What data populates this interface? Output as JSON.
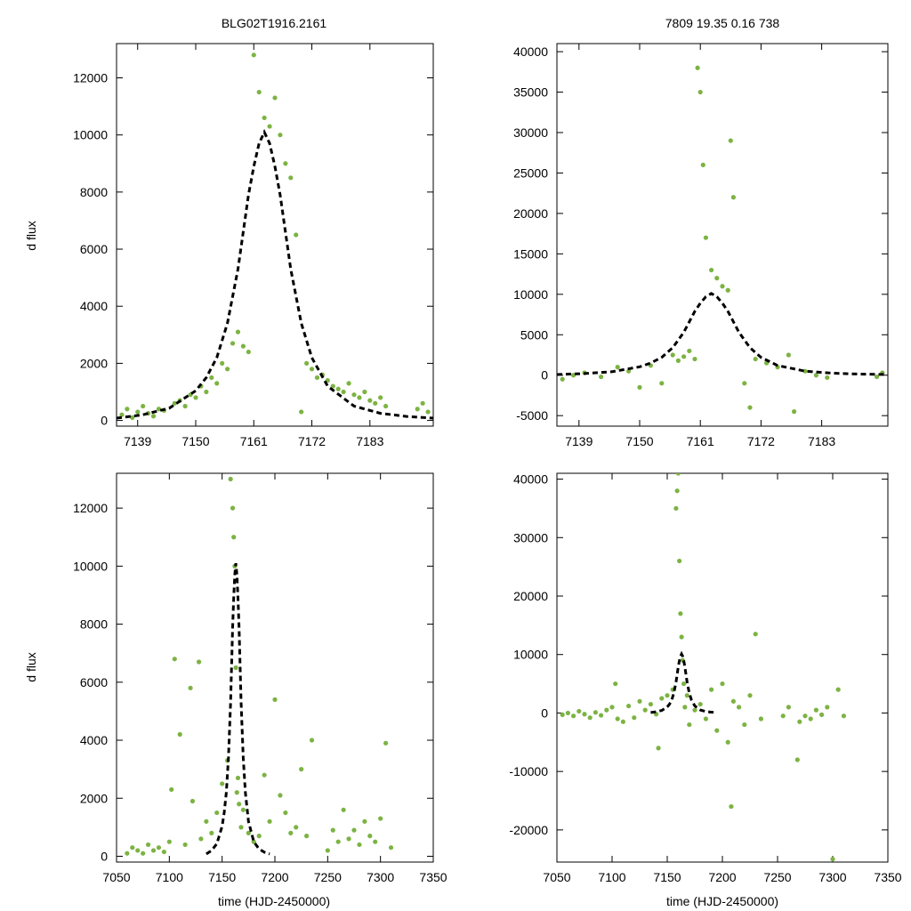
{
  "figure_title_left": "BLG02T1916.2161",
  "figure_title_right": "7809   19.35   0.16   738",
  "ylabel": "d flux",
  "xlabel": "time (HJD-2450000)",
  "colors": {
    "points": "#7cb342",
    "model": "#000000"
  },
  "model": {
    "type": "single-lens microlensing fit",
    "t0": 7163,
    "peak": 10100,
    "tE": 8.5
  },
  "chart_data": [
    {
      "type": "scatter",
      "panel": "top-left",
      "title": "BLG02T1916.2161",
      "xlabel": "",
      "ylabel": "d flux",
      "xlim": [
        7135,
        7195
      ],
      "ylim": [
        -200,
        13200
      ],
      "xticks": [
        7139,
        7150,
        7161,
        7172,
        7183
      ],
      "yticks": [
        0,
        2000,
        4000,
        6000,
        8000,
        10000,
        12000
      ],
      "series": [
        {
          "name": "photometry",
          "style": "points",
          "x": [
            7136,
            7137,
            7138,
            7139,
            7140,
            7141,
            7142,
            7143,
            7144,
            7146,
            7147,
            7148,
            7149,
            7150,
            7151,
            7152,
            7153,
            7154,
            7155,
            7156,
            7157,
            7158,
            7159,
            7160,
            7161,
            7162,
            7163,
            7164,
            7165,
            7166,
            7167,
            7168,
            7169,
            7170,
            7171,
            7172,
            7173,
            7174,
            7175,
            7176,
            7177,
            7178,
            7179,
            7180,
            7181,
            7182,
            7183,
            7184,
            7185,
            7186,
            7192,
            7193,
            7194
          ],
          "y": [
            200,
            400,
            100,
            300,
            500,
            250,
            150,
            400,
            350,
            600,
            700,
            500,
            900,
            800,
            1200,
            1000,
            1500,
            1300,
            2000,
            1800,
            2700,
            3100,
            2600,
            2400,
            12800,
            11500,
            10600,
            10300,
            11300,
            10000,
            9000,
            8500,
            6500,
            300,
            2000,
            1800,
            1500,
            1600,
            1400,
            1200,
            1100,
            1000,
            1300,
            900,
            800,
            1000,
            700,
            600,
            800,
            500,
            400,
            600,
            300
          ]
        },
        {
          "name": "model",
          "style": "dashed-line",
          "x": [
            7135,
            7140,
            7145,
            7150,
            7152,
            7154,
            7156,
            7158,
            7160,
            7161,
            7162,
            7163,
            7164,
            7165,
            7166,
            7168,
            7170,
            7172,
            7175,
            7180,
            7185,
            7190,
            7195
          ],
          "y": [
            80,
            200,
            430,
            1040,
            1500,
            2200,
            3400,
            5300,
            7900,
            8900,
            9700,
            10100,
            9700,
            8900,
            7900,
            5300,
            3400,
            2200,
            1200,
            500,
            250,
            140,
            80
          ]
        }
      ]
    },
    {
      "type": "scatter",
      "panel": "top-right",
      "title": "7809   19.35   0.16   738",
      "xlabel": "",
      "ylabel": "",
      "xlim": [
        7135,
        7195
      ],
      "ylim": [
        -6300,
        41000
      ],
      "xticks": [
        7139,
        7150,
        7161,
        7172,
        7183
      ],
      "yticks": [
        -5000,
        0,
        5000,
        10000,
        15000,
        20000,
        25000,
        30000,
        35000,
        40000
      ],
      "series": [
        {
          "name": "photometry",
          "style": "points",
          "x": [
            7136,
            7138,
            7140,
            7143,
            7146,
            7148,
            7150,
            7152,
            7154,
            7156,
            7157,
            7158,
            7159,
            7160,
            7160.5,
            7161,
            7161.5,
            7162,
            7163,
            7164,
            7165,
            7166,
            7166.5,
            7167,
            7169,
            7170,
            7171,
            7173,
            7175,
            7177,
            7178,
            7180,
            7182,
            7184,
            7193,
            7194
          ],
          "y": [
            -500,
            0,
            300,
            -200,
            1000,
            500,
            -1500,
            1200,
            -1000,
            2500,
            1800,
            2300,
            3000,
            2000,
            38000,
            35000,
            26000,
            17000,
            13000,
            12000,
            11000,
            10500,
            29000,
            22000,
            -1000,
            -4000,
            2000,
            1500,
            1000,
            2500,
            -4500,
            500,
            0,
            -300,
            -200,
            300
          ]
        },
        {
          "name": "model",
          "style": "dashed-line",
          "x": [
            7135,
            7140,
            7145,
            7150,
            7152,
            7154,
            7156,
            7158,
            7160,
            7161,
            7162,
            7163,
            7164,
            7165,
            7166,
            7168,
            7170,
            7172,
            7175,
            7180,
            7185,
            7190,
            7195
          ],
          "y": [
            80,
            200,
            430,
            1040,
            1500,
            2200,
            3400,
            5300,
            7900,
            8900,
            9700,
            10100,
            9700,
            8900,
            7900,
            5300,
            3400,
            2200,
            1200,
            500,
            250,
            140,
            80
          ]
        }
      ]
    },
    {
      "type": "scatter",
      "panel": "bottom-left",
      "title": "",
      "xlabel": "time (HJD-2450000)",
      "ylabel": "d flux",
      "xlim": [
        7050,
        7350
      ],
      "ylim": [
        -200,
        13200
      ],
      "xticks": [
        7050,
        7100,
        7150,
        7200,
        7250,
        7300,
        7350
      ],
      "yticks": [
        0,
        2000,
        4000,
        6000,
        8000,
        10000,
        12000
      ],
      "series": [
        {
          "name": "photometry",
          "style": "points",
          "x": [
            7060,
            7065,
            7070,
            7075,
            7080,
            7085,
            7090,
            7095,
            7100,
            7102,
            7105,
            7110,
            7115,
            7120,
            7122,
            7128,
            7130,
            7135,
            7140,
            7145,
            7150,
            7155,
            7158,
            7160,
            7161,
            7162,
            7163,
            7164,
            7165,
            7166,
            7168,
            7170,
            7175,
            7180,
            7185,
            7190,
            7195,
            7200,
            7205,
            7210,
            7215,
            7220,
            7225,
            7230,
            7235,
            7250,
            7255,
            7260,
            7265,
            7270,
            7275,
            7280,
            7285,
            7290,
            7295,
            7300,
            7305,
            7310
          ],
          "y": [
            100,
            300,
            200,
            100,
            400,
            200,
            300,
            150,
            500,
            2300,
            6800,
            4200,
            400,
            5800,
            1900,
            6700,
            600,
            1200,
            800,
            1500,
            2500,
            3300,
            13000,
            12000,
            11000,
            10000,
            6500,
            2200,
            2700,
            1800,
            1000,
            1600,
            800,
            500,
            700,
            2800,
            1200,
            5400,
            2100,
            1500,
            800,
            1000,
            3000,
            700,
            4000,
            200,
            900,
            500,
            1600,
            600,
            900,
            400,
            1200,
            700,
            500,
            1300,
            3900,
            300
          ]
        },
        {
          "name": "model",
          "style": "dashed-line",
          "x": [
            7135,
            7140,
            7145,
            7150,
            7152,
            7154,
            7156,
            7158,
            7160,
            7161,
            7162,
            7163,
            7164,
            7165,
            7166,
            7168,
            7170,
            7172,
            7175,
            7180,
            7185,
            7190,
            7195
          ],
          "y": [
            80,
            200,
            430,
            1040,
            1500,
            2200,
            3400,
            5300,
            7900,
            8900,
            9700,
            10100,
            9700,
            8900,
            7900,
            5300,
            3400,
            2200,
            1200,
            500,
            250,
            140,
            80
          ]
        }
      ]
    },
    {
      "type": "scatter",
      "panel": "bottom-right",
      "title": "",
      "xlabel": "time (HJD-2450000)",
      "ylabel": "",
      "xlim": [
        7050,
        7350
      ],
      "ylim": [
        -25500,
        41000
      ],
      "xticks": [
        7050,
        7100,
        7150,
        7200,
        7250,
        7300,
        7350
      ],
      "yticks": [
        -20000,
        -10000,
        0,
        10000,
        20000,
        30000,
        40000
      ],
      "series": [
        {
          "name": "photometry",
          "style": "points",
          "x": [
            7055,
            7060,
            7065,
            7070,
            7075,
            7080,
            7085,
            7090,
            7095,
            7100,
            7103,
            7105,
            7110,
            7115,
            7120,
            7125,
            7130,
            7135,
            7140,
            7142,
            7145,
            7150,
            7155,
            7158,
            7159,
            7160,
            7161,
            7162,
            7163,
            7164,
            7165,
            7166,
            7168,
            7170,
            7175,
            7180,
            7185,
            7190,
            7195,
            7200,
            7205,
            7208,
            7210,
            7215,
            7220,
            7225,
            7230,
            7235,
            7255,
            7260,
            7268,
            7270,
            7275,
            7280,
            7285,
            7290,
            7295,
            7300,
            7305,
            7310
          ],
          "y": [
            -300,
            0,
            -500,
            300,
            -200,
            -800,
            100,
            -400,
            500,
            1000,
            5000,
            -1000,
            -1500,
            1200,
            -800,
            2000,
            500,
            1500,
            -200,
            -6000,
            2500,
            3000,
            4000,
            35000,
            38000,
            41000,
            26000,
            17000,
            13000,
            9000,
            5000,
            1000,
            3000,
            -2000,
            500,
            1500,
            -1000,
            4000,
            -3000,
            5000,
            -5000,
            -16000,
            2000,
            1000,
            -2000,
            3000,
            13500,
            -1000,
            -500,
            1000,
            -8000,
            -1500,
            -500,
            -1000,
            500,
            -300,
            1000,
            -25000,
            4000,
            -500
          ]
        },
        {
          "name": "model",
          "style": "dashed-line",
          "x": [
            7135,
            7140,
            7145,
            7150,
            7152,
            7154,
            7156,
            7158,
            7160,
            7161,
            7162,
            7163,
            7164,
            7165,
            7166,
            7168,
            7170,
            7172,
            7175,
            7180,
            7185,
            7190,
            7195
          ],
          "y": [
            80,
            200,
            430,
            1040,
            1500,
            2200,
            3400,
            5300,
            7900,
            8900,
            9700,
            10100,
            9700,
            8900,
            7900,
            5300,
            3400,
            2200,
            1200,
            500,
            250,
            140,
            80
          ]
        }
      ]
    }
  ]
}
